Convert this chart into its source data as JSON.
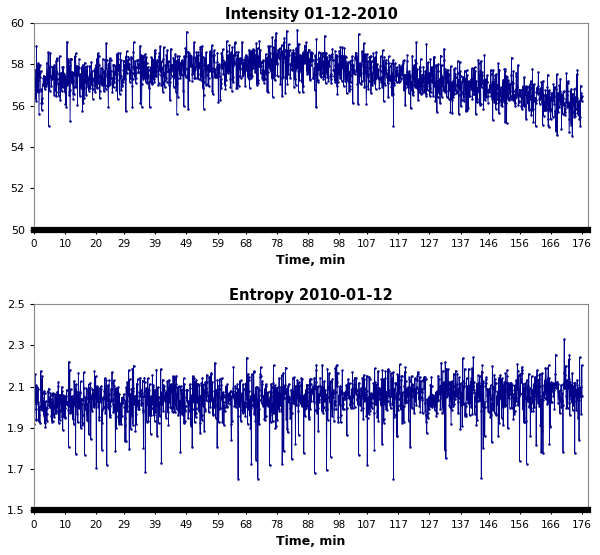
{
  "title1": "Intensity 01-12-2010",
  "title2": "Entropy 2010-01-12",
  "xlabel": "Time, min",
  "color": "#00008B",
  "intensity_ylim": [
    50,
    60
  ],
  "intensity_yticks": [
    50,
    52,
    54,
    56,
    58,
    60
  ],
  "entropy_ylim": [
    1.5,
    2.5
  ],
  "entropy_yticks": [
    1.5,
    1.7,
    1.9,
    2.1,
    2.3,
    2.5
  ],
  "xticks": [
    0,
    10,
    20,
    29,
    39,
    49,
    59,
    68,
    78,
    88,
    98,
    107,
    117,
    127,
    137,
    146,
    156,
    166,
    176
  ],
  "n_points": 1780,
  "background_color": "#ffffff",
  "axes_bg_color": "#ffffff",
  "marker": "o",
  "markersize": 1.8,
  "linewidth": 0.6
}
